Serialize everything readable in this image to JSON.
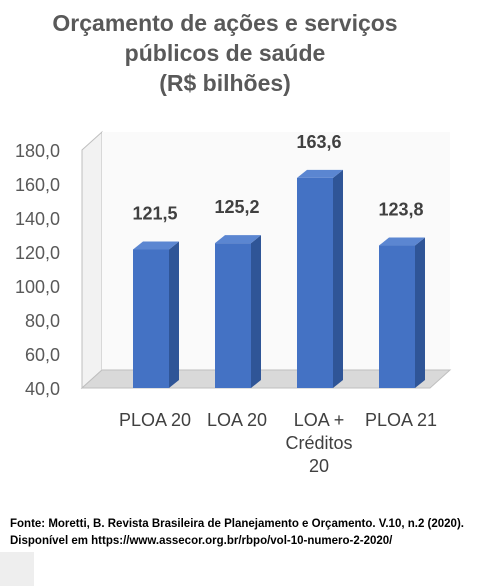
{
  "chart_data": {
    "type": "bar",
    "title": "Orçamento de ações e serviços\npúblicos de saúde\n(R$ bilhões)",
    "categories": [
      "PLOA 20",
      "LOA 20",
      "LOA +\nCréditos\n20",
      "PLOA 21"
    ],
    "values": [
      121.5,
      125.2,
      163.6,
      123.8
    ],
    "data_labels": [
      "121,5",
      "125,2",
      "163,6",
      "123,8"
    ],
    "y_ticks": [
      "40,0",
      "60,0",
      "80,0",
      "100,0",
      "120,0",
      "140,0",
      "160,0",
      "180,0"
    ],
    "ylim": [
      40,
      180
    ],
    "style": "3d-bar",
    "grid": false,
    "colors": {
      "bar_front": "#4472c4",
      "bar_side": "#2f5597",
      "bar_top": "#5b86d1",
      "floor": "#d9d9d9",
      "walls": "#f2f2f2"
    }
  },
  "source_note": "Fonte: Moretti, B. Revista Brasileira de Planejamento e Orçamento. V.10, n.2 (2020). Disponível em https://www.assecor.org.br/rbpo/vol-10-numero-2-2020/"
}
